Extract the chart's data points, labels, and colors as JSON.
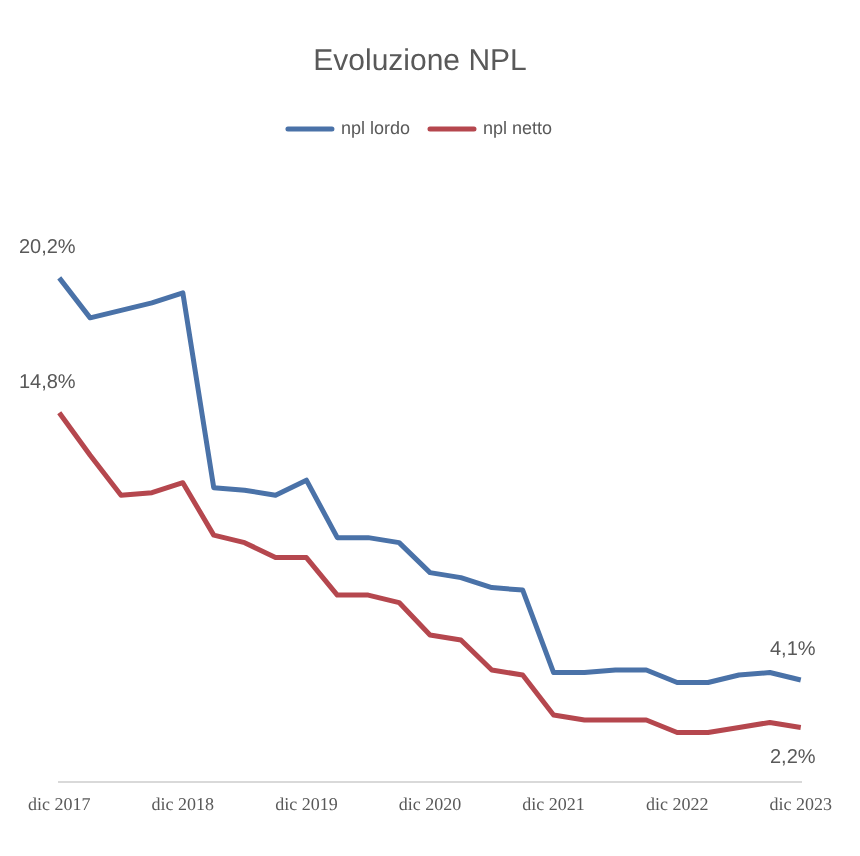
{
  "chart_data": {
    "type": "line",
    "title": "Evoluzione NPL",
    "categories": [
      "dic 2017",
      null,
      null,
      null,
      "dic 2018",
      null,
      null,
      null,
      "dic 2019",
      null,
      null,
      null,
      "dic 2020",
      null,
      null,
      null,
      "dic 2021",
      null,
      null,
      null,
      "dic 2022",
      null,
      null,
      null,
      "dic 2023"
    ],
    "series": [
      {
        "name": "npl lordo",
        "color": "#4a72a8",
        "values": [
          20.2,
          18.6,
          18.9,
          19.2,
          19.6,
          11.8,
          11.7,
          11.5,
          12.1,
          9.8,
          9.8,
          9.6,
          8.4,
          8.2,
          7.8,
          7.7,
          4.4,
          4.4,
          4.5,
          4.5,
          4.0,
          4.0,
          4.3,
          4.4,
          4.1
        ],
        "value_labels": [
          "20,2%",
          null,
          null,
          null,
          null,
          null,
          null,
          null,
          null,
          null,
          null,
          null,
          null,
          null,
          null,
          null,
          null,
          null,
          null,
          null,
          null,
          null,
          null,
          null,
          "4,1%"
        ]
      },
      {
        "name": "npl netto",
        "color": "#b5474e",
        "values": [
          14.8,
          13.1,
          11.5,
          11.6,
          12.0,
          9.9,
          9.6,
          9.0,
          9.0,
          7.5,
          7.5,
          7.2,
          5.9,
          5.7,
          4.5,
          4.3,
          2.7,
          2.5,
          2.5,
          2.5,
          2.0,
          2.0,
          2.2,
          2.4,
          2.2
        ],
        "value_labels": [
          "14,8%",
          null,
          null,
          null,
          null,
          null,
          null,
          null,
          null,
          null,
          null,
          null,
          null,
          null,
          null,
          null,
          null,
          null,
          null,
          null,
          null,
          null,
          null,
          null,
          "2,2%"
        ]
      }
    ],
    "tick_labels": "x",
    "legend": "top",
    "marker": "none",
    "line_style": "solid",
    "grid": false
  }
}
